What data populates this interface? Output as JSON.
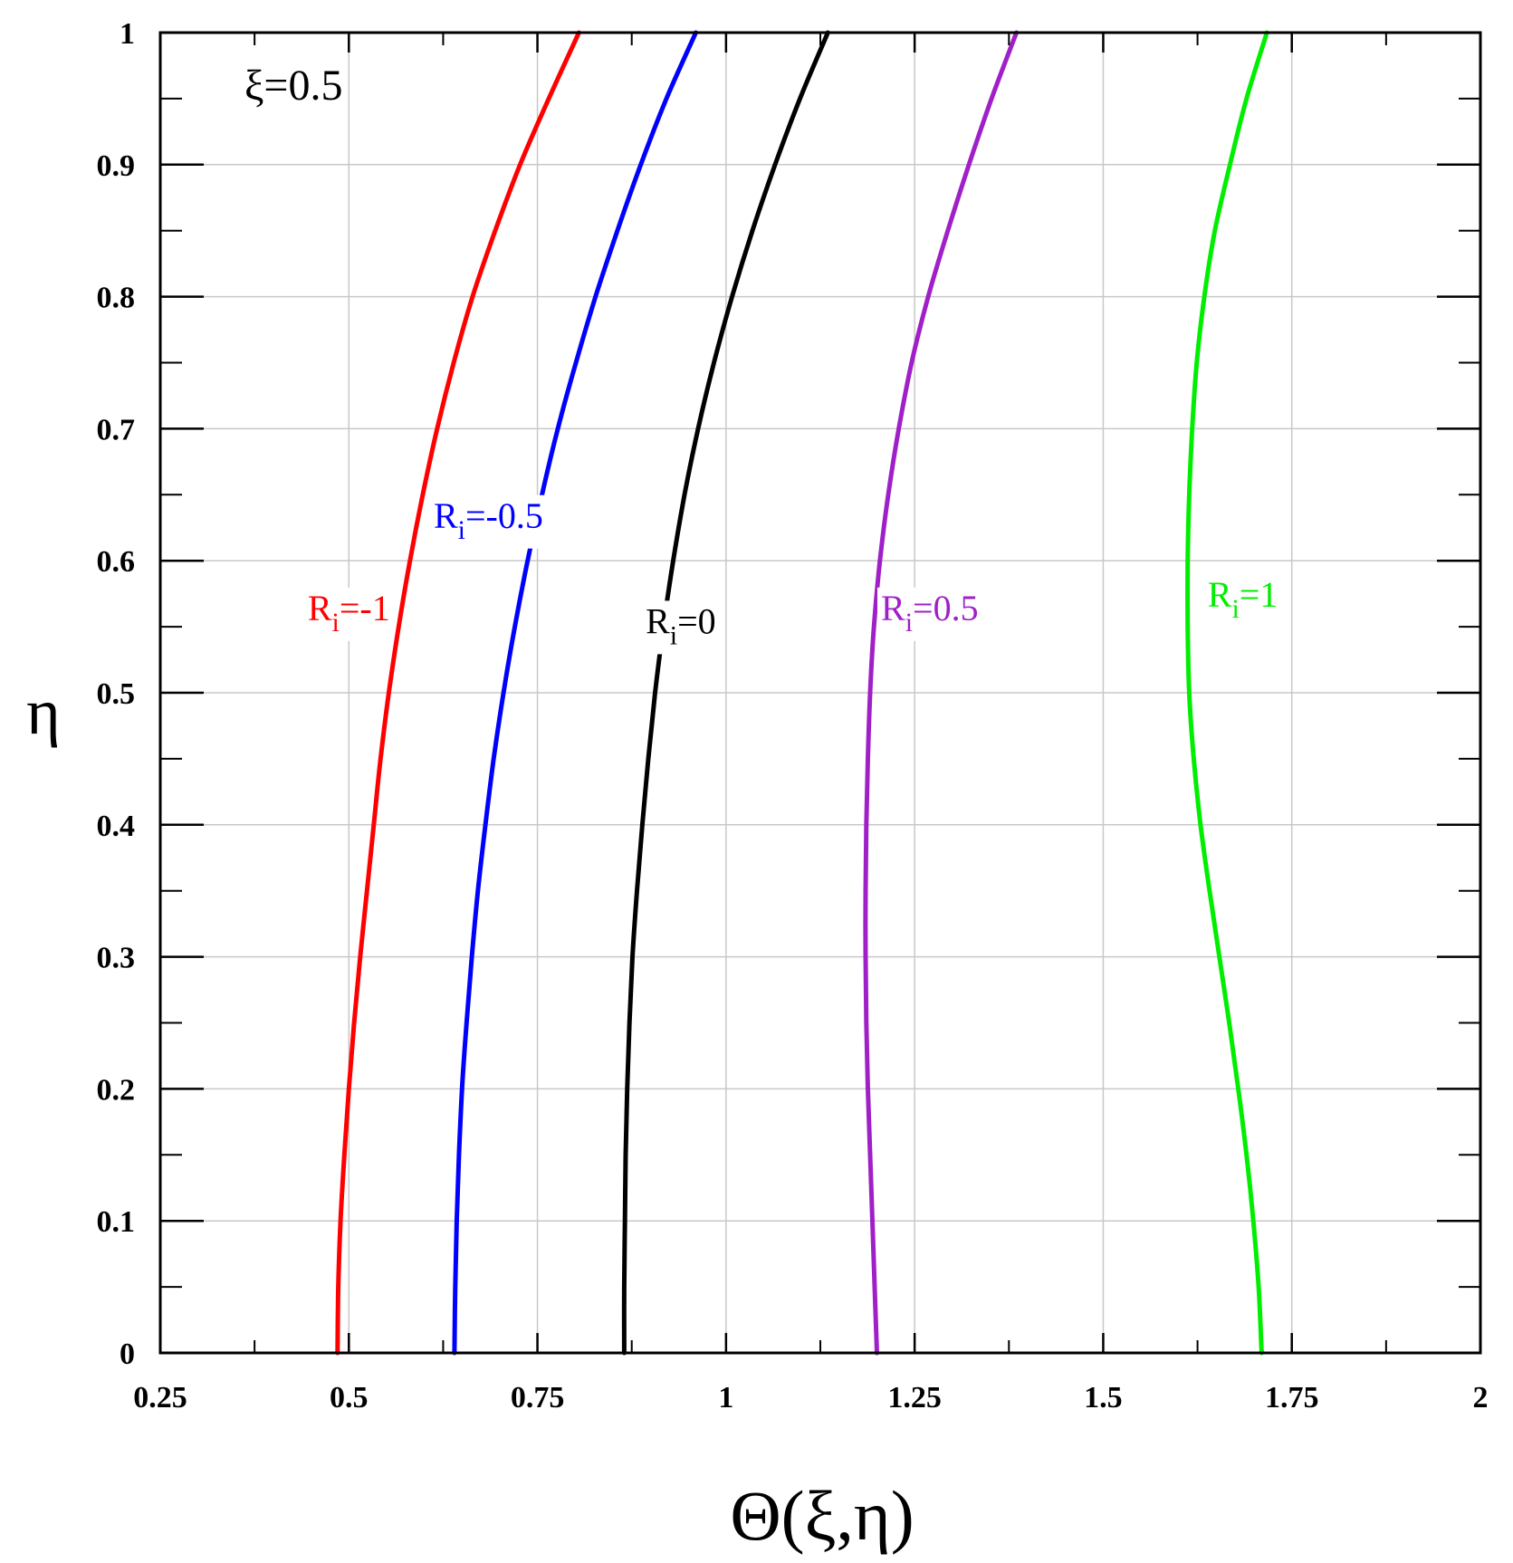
{
  "chart_data": {
    "type": "line",
    "xlabel": "Θ(ξ,η)",
    "ylabel": "η",
    "annotation": "ξ=0.5",
    "xlim": [
      0.25,
      2
    ],
    "ylim": [
      0,
      1
    ],
    "xticks": [
      0.25,
      0.5,
      0.75,
      1,
      1.25,
      1.5,
      1.75,
      2
    ],
    "xtick_labels": [
      "0.25",
      "0.5",
      "0.75",
      "1",
      "1.25",
      "1.5",
      "1.75",
      "2"
    ],
    "yticks": [
      0,
      0.1,
      0.2,
      0.3,
      0.4,
      0.5,
      0.6,
      0.7,
      0.8,
      0.9,
      1
    ],
    "ytick_labels": [
      "0",
      "0.1",
      "0.2",
      "0.3",
      "0.4",
      "0.5",
      "0.6",
      "0.7",
      "0.8",
      "0.9",
      "1"
    ],
    "grid": true,
    "series": [
      {
        "label_main": "R",
        "label_sub": "i",
        "label_rest": "=-1",
        "color": "#ff0000",
        "label_at": [
          0.5,
          0.555
        ],
        "points": [
          [
            0.485,
            0
          ],
          [
            0.486,
            0.05
          ],
          [
            0.489,
            0.1
          ],
          [
            0.494,
            0.15
          ],
          [
            0.5,
            0.2
          ],
          [
            0.507,
            0.25
          ],
          [
            0.515,
            0.3
          ],
          [
            0.524,
            0.35
          ],
          [
            0.533,
            0.4
          ],
          [
            0.542,
            0.45
          ],
          [
            0.553,
            0.5
          ],
          [
            0.566,
            0.55
          ],
          [
            0.581,
            0.6
          ],
          [
            0.598,
            0.65
          ],
          [
            0.617,
            0.7
          ],
          [
            0.639,
            0.75
          ],
          [
            0.664,
            0.8
          ],
          [
            0.694,
            0.85
          ],
          [
            0.727,
            0.9
          ],
          [
            0.765,
            0.95
          ],
          [
            0.805,
            1.0
          ]
        ]
      },
      {
        "label_main": "R",
        "label_sub": "i",
        "label_rest": "=-0.5",
        "color": "#0000ff",
        "label_at": [
          0.685,
          0.625
        ],
        "points": [
          [
            0.64,
            0
          ],
          [
            0.641,
            0.05
          ],
          [
            0.643,
            0.1
          ],
          [
            0.646,
            0.15
          ],
          [
            0.65,
            0.2
          ],
          [
            0.656,
            0.25
          ],
          [
            0.663,
            0.3
          ],
          [
            0.671,
            0.35
          ],
          [
            0.681,
            0.4
          ],
          [
            0.692,
            0.45
          ],
          [
            0.705,
            0.5
          ],
          [
            0.72,
            0.55
          ],
          [
            0.737,
            0.6
          ],
          [
            0.756,
            0.65
          ],
          [
            0.777,
            0.7
          ],
          [
            0.801,
            0.75
          ],
          [
            0.827,
            0.8
          ],
          [
            0.856,
            0.85
          ],
          [
            0.887,
            0.9
          ],
          [
            0.921,
            0.95
          ],
          [
            0.96,
            1.0
          ]
        ]
      },
      {
        "label_main": "R",
        "label_sub": "i",
        "label_rest": "=0",
        "color": "#000000",
        "label_at": [
          0.94,
          0.545
        ],
        "points": [
          [
            0.865,
            0
          ],
          [
            0.865,
            0.05
          ],
          [
            0.866,
            0.1
          ],
          [
            0.867,
            0.15
          ],
          [
            0.869,
            0.2
          ],
          [
            0.872,
            0.25
          ],
          [
            0.876,
            0.3
          ],
          [
            0.882,
            0.35
          ],
          [
            0.889,
            0.4
          ],
          [
            0.897,
            0.45
          ],
          [
            0.906,
            0.5
          ],
          [
            0.917,
            0.55
          ],
          [
            0.93,
            0.6
          ],
          [
            0.945,
            0.65
          ],
          [
            0.963,
            0.7
          ],
          [
            0.984,
            0.75
          ],
          [
            1.008,
            0.8
          ],
          [
            1.035,
            0.85
          ],
          [
            1.065,
            0.9
          ],
          [
            1.098,
            0.95
          ],
          [
            1.135,
            1.0
          ]
        ]
      },
      {
        "label_main": "R",
        "label_sub": "i",
        "label_rest": "=0.5",
        "color": "#a020c8",
        "label_at": [
          1.27,
          0.555
        ],
        "points": [
          [
            1.2,
            0
          ],
          [
            1.197,
            0.05
          ],
          [
            1.194,
            0.1
          ],
          [
            1.191,
            0.15
          ],
          [
            1.188,
            0.2
          ],
          [
            1.186,
            0.25
          ],
          [
            1.185,
            0.3
          ],
          [
            1.185,
            0.35
          ],
          [
            1.186,
            0.4
          ],
          [
            1.188,
            0.45
          ],
          [
            1.191,
            0.5
          ],
          [
            1.196,
            0.55
          ],
          [
            1.204,
            0.6
          ],
          [
            1.215,
            0.65
          ],
          [
            1.229,
            0.7
          ],
          [
            1.246,
            0.75
          ],
          [
            1.268,
            0.8
          ],
          [
            1.294,
            0.85
          ],
          [
            1.322,
            0.9
          ],
          [
            1.352,
            0.95
          ],
          [
            1.385,
            1.0
          ]
        ]
      },
      {
        "label_main": "R",
        "label_sub": "i",
        "label_rest": "=1",
        "color": "#00ee00",
        "label_at": [
          1.685,
          0.565
        ],
        "points": [
          [
            1.71,
            0
          ],
          [
            1.706,
            0.05
          ],
          [
            1.699,
            0.1
          ],
          [
            1.69,
            0.15
          ],
          [
            1.679,
            0.2
          ],
          [
            1.667,
            0.25
          ],
          [
            1.654,
            0.3
          ],
          [
            1.641,
            0.35
          ],
          [
            1.629,
            0.4
          ],
          [
            1.62,
            0.45
          ],
          [
            1.614,
            0.5
          ],
          [
            1.612,
            0.55
          ],
          [
            1.612,
            0.6
          ],
          [
            1.614,
            0.65
          ],
          [
            1.618,
            0.7
          ],
          [
            1.624,
            0.75
          ],
          [
            1.634,
            0.8
          ],
          [
            1.648,
            0.85
          ],
          [
            1.668,
            0.9
          ],
          [
            1.69,
            0.95
          ],
          [
            1.717,
            1.0
          ]
        ]
      }
    ]
  }
}
